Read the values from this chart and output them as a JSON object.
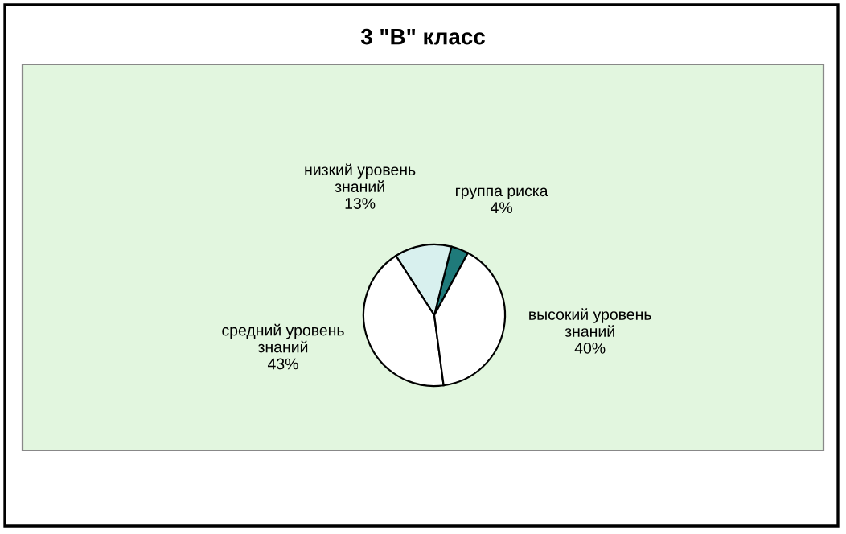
{
  "chart_data": {
    "type": "pie",
    "title": "3 \"В\" класс",
    "categories": [
      "группа риска",
      "низкий уровень знаний",
      "средний уровень знаний",
      "высокий уровень знаний"
    ],
    "values": [
      4,
      13,
      43,
      40
    ],
    "value_labels": [
      "4%",
      "13%",
      "43%",
      "40%"
    ],
    "colors": [
      "#1f7a7a",
      "#d8f0ee",
      "#ffffff",
      "#ffffff"
    ],
    "legend": false
  }
}
